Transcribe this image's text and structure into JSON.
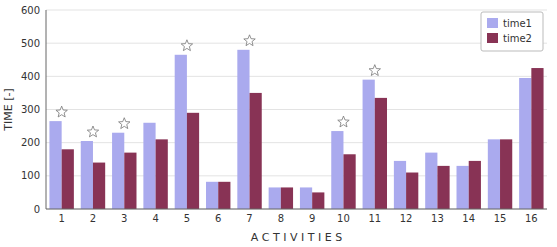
{
  "chart_data": {
    "type": "bar",
    "categories": [
      "1",
      "2",
      "3",
      "4",
      "5",
      "6",
      "7",
      "8",
      "9",
      "10",
      "11",
      "12",
      "13",
      "14",
      "15",
      "16"
    ],
    "series": [
      {
        "name": "time1",
        "color": "#aaaaee",
        "values": [
          265,
          205,
          230,
          260,
          465,
          82,
          480,
          65,
          65,
          235,
          390,
          145,
          170,
          130,
          210,
          395
        ]
      },
      {
        "name": "time2",
        "color": "#883355",
        "values": [
          180,
          140,
          170,
          210,
          290,
          82,
          350,
          65,
          50,
          165,
          335,
          110,
          130,
          145,
          210,
          425
        ]
      }
    ],
    "significant": [
      "1",
      "2",
      "3",
      "5",
      "7",
      "10",
      "11"
    ],
    "x_label": "A C T I V I T I E S",
    "y_label": "TIME [-]",
    "ylim": [
      0,
      600
    ],
    "yticks": [
      0,
      100,
      200,
      300,
      400,
      500,
      600
    ],
    "grid": true,
    "legend": "upper right"
  }
}
